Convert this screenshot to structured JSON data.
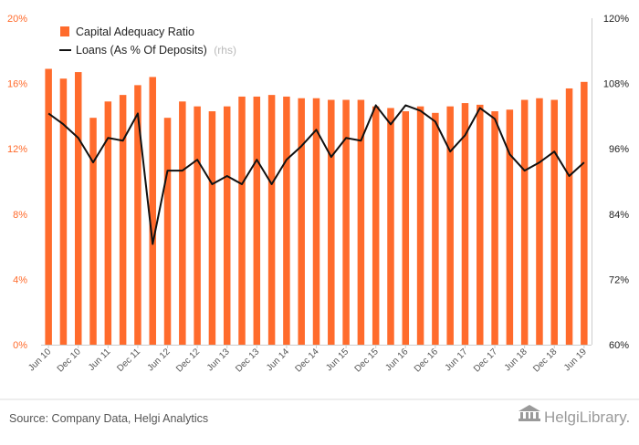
{
  "chart_data": {
    "type": "bar+line",
    "categories": [
      "Jun 10",
      "Sep 10",
      "Dec 10",
      "Mar 11",
      "Jun 11",
      "Sep 11",
      "Dec 11",
      "Mar 12",
      "Jun 12",
      "Sep 12",
      "Dec 12",
      "Mar 13",
      "Jun 13",
      "Sep 13",
      "Dec 13",
      "Mar 14",
      "Jun 14",
      "Sep 14",
      "Dec 14",
      "Mar 15",
      "Jun 15",
      "Sep 15",
      "Dec 15",
      "Mar 16",
      "Jun 16",
      "Sep 16",
      "Dec 16",
      "Mar 17",
      "Jun 17",
      "Sep 17",
      "Dec 17",
      "Mar 18",
      "Jun 18",
      "Sep 18",
      "Dec 18",
      "Mar 19",
      "Jun 19"
    ],
    "x_tick_labels": [
      "Jun 10",
      "Dec 10",
      "Jun 11",
      "Dec 11",
      "Jun 12",
      "Dec 12",
      "Jun 13",
      "Dec 13",
      "Jun 14",
      "Dec 14",
      "Jun 15",
      "Dec 15",
      "Jun 16",
      "Dec 16",
      "Jun 17",
      "Dec 17",
      "Jun 18",
      "Dec 18",
      "Jun 19"
    ],
    "series": [
      {
        "name": "Capital Adequacy Ratio",
        "type": "bar",
        "axis": "left",
        "color": "#ff6b2c",
        "values": [
          16.9,
          16.3,
          16.7,
          13.9,
          14.9,
          15.3,
          15.9,
          16.4,
          13.9,
          14.9,
          14.6,
          14.3,
          14.6,
          15.2,
          15.2,
          15.3,
          15.2,
          15.1,
          15.1,
          15.0,
          15.0,
          15.0,
          14.6,
          14.5,
          14.3,
          14.6,
          14.2,
          14.6,
          14.8,
          14.7,
          14.3,
          14.4,
          15.0,
          15.1,
          15.0,
          15.7,
          16.1
        ]
      },
      {
        "name": "Loans (As % Of Deposits)",
        "name_note": "(rhs)",
        "type": "line",
        "axis": "right",
        "color": "#111111",
        "values": [
          102.5,
          100.5,
          98.0,
          93.5,
          98.0,
          97.5,
          102.5,
          78.5,
          92.0,
          92.0,
          94.0,
          89.5,
          91.0,
          89.5,
          94.0,
          89.5,
          94.0,
          96.5,
          99.5,
          94.5,
          98.0,
          97.5,
          104.0,
          100.5,
          104.0,
          103.0,
          101.0,
          95.5,
          98.5,
          103.5,
          101.5,
          95.0,
          92.0,
          93.5,
          95.5,
          91.0,
          93.5
        ]
      }
    ],
    "y_left": {
      "ticks": [
        "0%",
        "4%",
        "8%",
        "12%",
        "16%",
        "20%"
      ],
      "range": [
        0,
        20
      ]
    },
    "y_right": {
      "ticks": [
        "60%",
        "72%",
        "84%",
        "96%",
        "108%",
        "120%"
      ],
      "range": [
        60,
        120
      ]
    },
    "legend_position": "top-left",
    "grid": false
  },
  "footer": {
    "source": "Source: Company Data, Helgi Analytics",
    "logo_text": "HelgiLibrary."
  }
}
